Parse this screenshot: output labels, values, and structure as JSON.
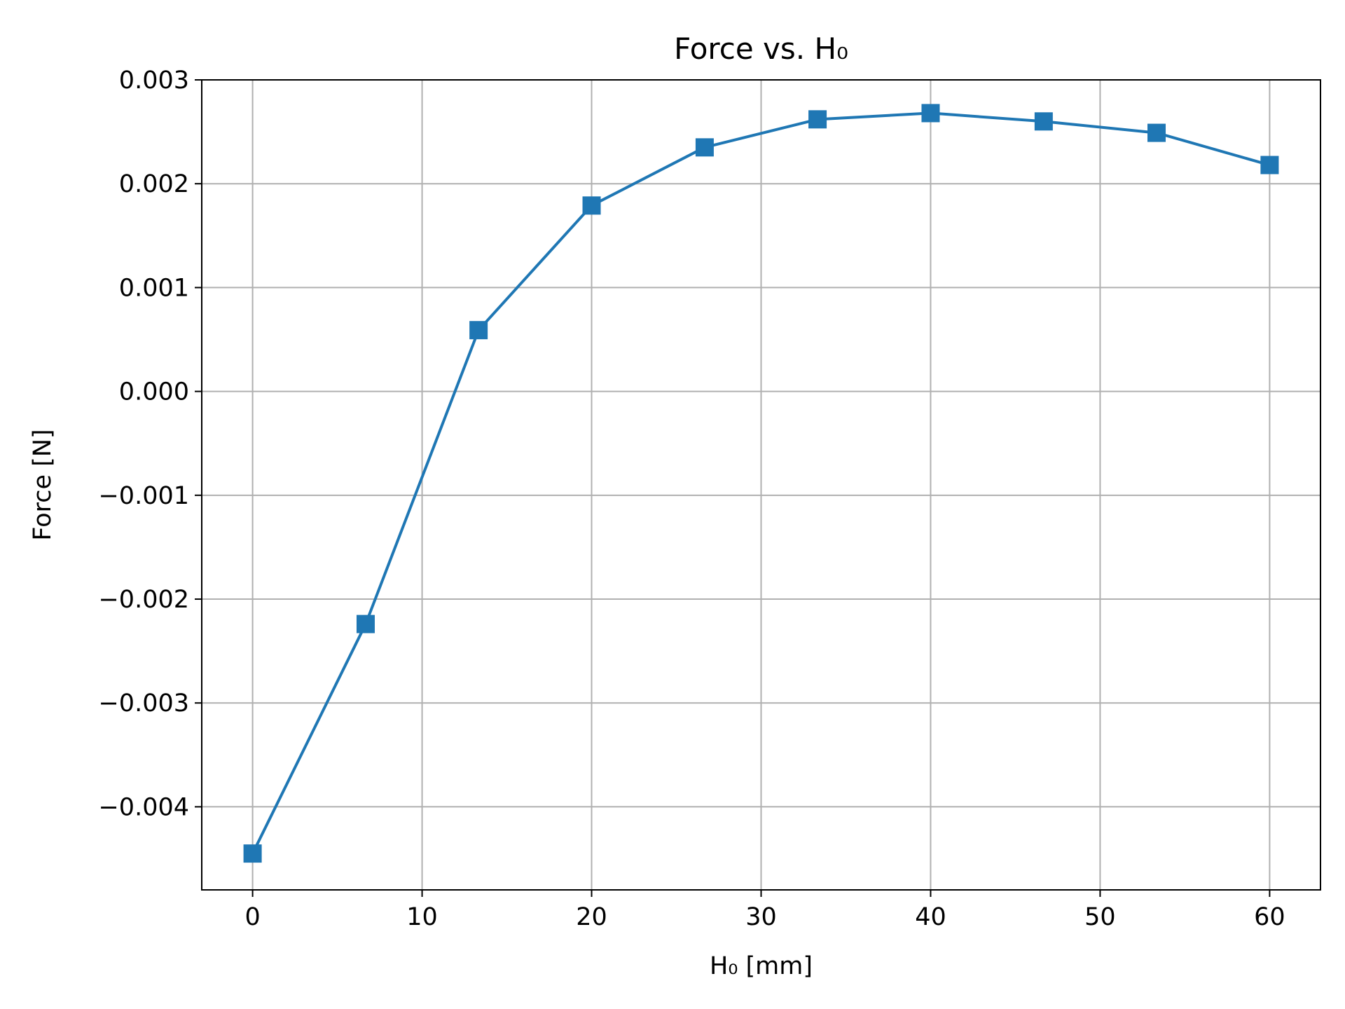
{
  "chart_data": {
    "type": "line",
    "title": "Force vs. H₀",
    "xlabel": "H₀ [mm]",
    "ylabel": "Force [N]",
    "xlim": [
      -3,
      63
    ],
    "ylim": [
      -0.0048,
      0.003
    ],
    "grid": true,
    "legend": "none",
    "x_ticks": [
      0,
      10,
      20,
      30,
      40,
      50,
      60
    ],
    "x_tick_labels": [
      "0",
      "10",
      "20",
      "30",
      "40",
      "50",
      "60"
    ],
    "y_ticks": [
      -0.004,
      -0.003,
      -0.002,
      -0.001,
      0.0,
      0.001,
      0.002,
      0.003
    ],
    "y_tick_labels": [
      "−0.004",
      "−0.003",
      "−0.002",
      "−0.001",
      "0.000",
      "0.001",
      "0.002",
      "0.003"
    ],
    "series": [
      {
        "color": "#1f77b4",
        "marker": "square",
        "x": [
          0,
          6.67,
          13.33,
          20,
          26.67,
          33.33,
          40,
          46.67,
          53.33,
          60
        ],
        "y": [
          -0.00445,
          -0.00224,
          0.00059,
          0.00179,
          0.00235,
          0.00262,
          0.00268,
          0.0026,
          0.00249,
          0.00218
        ]
      }
    ]
  }
}
